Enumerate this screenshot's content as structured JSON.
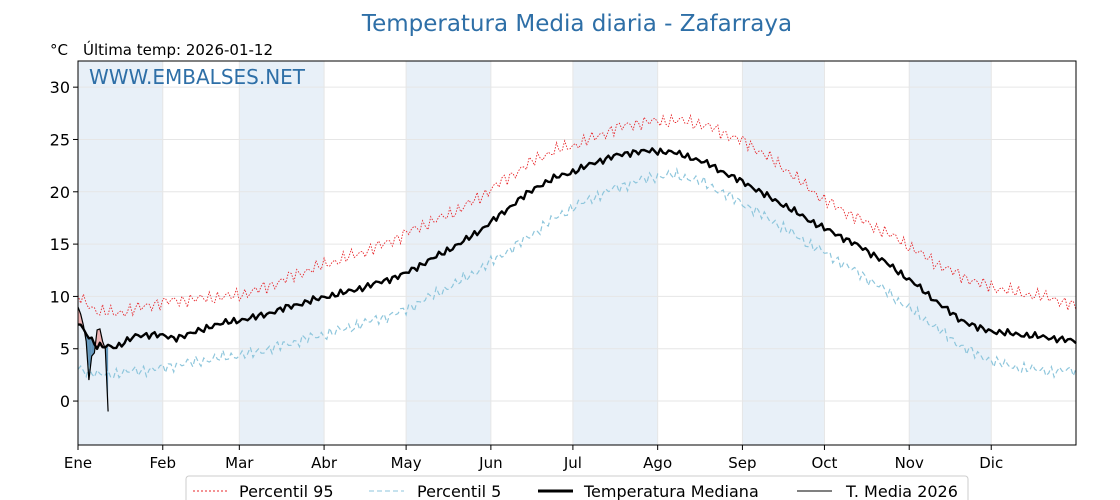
{
  "chart_data": {
    "type": "line",
    "title": "Temperatura Media diaria - Zafarraya",
    "ylabel": "°C",
    "subtitle": "Última temp: 2026-01-12",
    "watermark": "WWW.EMBALSES.NET",
    "ylim": [
      -4.2,
      32.5
    ],
    "yticks": [
      0,
      5,
      10,
      15,
      20,
      25,
      30
    ],
    "xlim": [
      1,
      366
    ],
    "months": [
      {
        "label": "Ene",
        "day": 1
      },
      {
        "label": "Feb",
        "day": 32
      },
      {
        "label": "Mar",
        "day": 60
      },
      {
        "label": "Abr",
        "day": 91
      },
      {
        "label": "May",
        "day": 121
      },
      {
        "label": "Jun",
        "day": 152
      },
      {
        "label": "Jul",
        "day": 182
      },
      {
        "label": "Ago",
        "day": 213
      },
      {
        "label": "Sep",
        "day": 244
      },
      {
        "label": "Oct",
        "day": 274
      },
      {
        "label": "Nov",
        "day": 305
      },
      {
        "label": "Dic",
        "day": 335
      }
    ],
    "grid": true,
    "legend_position": "bottom",
    "colors": {
      "title": "#2e6fa7",
      "p95": "#e8262a",
      "p5": "#8ec6dc",
      "median": "#000000",
      "current": "#000000",
      "band": "#e8f0f8",
      "fill_above": "#f0a8a8",
      "fill_below": "#4a86b0",
      "grid": "#e6e6e6"
    },
    "series": [
      {
        "name": "Percentil 95",
        "style": "dotted",
        "x": [
          1,
          8,
          15,
          22,
          29,
          36,
          43,
          50,
          57,
          64,
          71,
          78,
          85,
          92,
          99,
          106,
          113,
          120,
          127,
          134,
          141,
          148,
          155,
          162,
          169,
          176,
          183,
          190,
          197,
          204,
          211,
          218,
          225,
          232,
          239,
          246,
          253,
          260,
          267,
          274,
          281,
          288,
          295,
          302,
          309,
          316,
          323,
          330,
          337,
          344,
          351,
          358,
          366
        ],
        "y": [
          10.0,
          8.6,
          8.4,
          8.8,
          9.3,
          9.6,
          9.7,
          9.9,
          10.0,
          10.4,
          11.0,
          11.8,
          12.5,
          13.1,
          13.7,
          14.3,
          15.0,
          15.9,
          16.8,
          17.5,
          18.4,
          19.5,
          20.8,
          22.0,
          23.2,
          24.0,
          24.5,
          25.2,
          26.0,
          26.5,
          26.7,
          26.8,
          26.7,
          26.2,
          25.4,
          24.6,
          23.4,
          22.1,
          20.6,
          19.2,
          18.2,
          17.2,
          16.3,
          15.3,
          14.1,
          13.0,
          12.1,
          11.3,
          10.8,
          10.4,
          10.1,
          9.8,
          9.0
        ]
      },
      {
        "name": "Percentil 5",
        "style": "dashed",
        "x": [
          1,
          8,
          15,
          22,
          29,
          36,
          43,
          50,
          57,
          64,
          71,
          78,
          85,
          92,
          99,
          106,
          113,
          120,
          127,
          134,
          141,
          148,
          155,
          162,
          169,
          176,
          183,
          190,
          197,
          204,
          211,
          218,
          225,
          232,
          239,
          246,
          253,
          260,
          267,
          274,
          281,
          288,
          295,
          302,
          309,
          316,
          323,
          330,
          337,
          344,
          351,
          358,
          366
        ],
        "y": [
          3.2,
          2.5,
          2.6,
          2.9,
          3.0,
          3.4,
          3.7,
          4.0,
          4.3,
          4.5,
          5.0,
          5.5,
          6.0,
          6.4,
          6.9,
          7.5,
          8.0,
          8.6,
          9.6,
          10.5,
          11.5,
          12.6,
          13.8,
          15.0,
          16.3,
          17.6,
          18.6,
          19.5,
          20.3,
          20.9,
          21.4,
          21.6,
          21.3,
          20.6,
          19.6,
          18.6,
          17.5,
          16.4,
          15.2,
          14.2,
          13.1,
          12.0,
          10.8,
          9.4,
          8.1,
          6.8,
          5.4,
          4.4,
          3.7,
          3.2,
          3.0,
          2.8,
          3.0
        ]
      },
      {
        "name": "Temperatura Mediana",
        "style": "solid-thick",
        "x": [
          1,
          8,
          15,
          22,
          29,
          36,
          43,
          50,
          57,
          64,
          71,
          78,
          85,
          92,
          99,
          106,
          113,
          120,
          127,
          134,
          141,
          148,
          155,
          162,
          169,
          176,
          183,
          190,
          197,
          204,
          211,
          218,
          225,
          232,
          239,
          246,
          253,
          260,
          267,
          274,
          281,
          288,
          295,
          302,
          309,
          316,
          323,
          330,
          337,
          344,
          351,
          358,
          366
        ],
        "y": [
          7.5,
          5.2,
          5.2,
          6.2,
          6.4,
          6.0,
          6.5,
          7.2,
          7.6,
          7.9,
          8.4,
          9.0,
          9.5,
          10.0,
          10.4,
          10.9,
          11.5,
          12.1,
          13.1,
          14.1,
          15.1,
          16.3,
          17.7,
          19.2,
          20.5,
          21.4,
          22.0,
          22.8,
          23.4,
          23.8,
          23.9,
          23.8,
          23.3,
          22.6,
          21.6,
          20.7,
          19.6,
          18.6,
          17.5,
          16.5,
          15.6,
          14.6,
          13.5,
          12.2,
          10.8,
          9.3,
          7.9,
          7.0,
          6.6,
          6.4,
          6.2,
          6.0,
          5.7
        ]
      },
      {
        "name": "T. Media 2026",
        "style": "solid-thin",
        "x": [
          1,
          2,
          3,
          4,
          5,
          6,
          7,
          8,
          9,
          10,
          11,
          12
        ],
        "y": [
          9.0,
          8.3,
          7.2,
          5.7,
          2.0,
          4.3,
          4.6,
          6.8,
          6.9,
          5.7,
          5.0,
          -1.0
        ]
      }
    ]
  }
}
